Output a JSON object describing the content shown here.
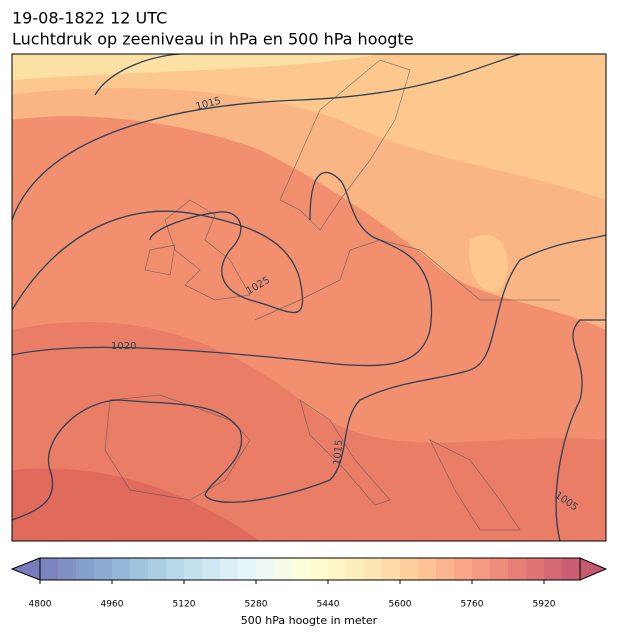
{
  "header": {
    "date": "19-08-1822 12 UTC",
    "title": "Luchtdruk op zeeniveau in hPa en 500 hPa hoogte"
  },
  "contour_labels": [
    "1015",
    "1025",
    "1020",
    "1015",
    "1005"
  ],
  "colorbar": {
    "label": "500 hPa hoogte in meter",
    "range": [
      4800,
      6000
    ],
    "step": 40,
    "ticks": [
      4800,
      4960,
      5120,
      5280,
      5440,
      5600,
      5760,
      5920
    ],
    "colormap": "RdYlBu_r",
    "extend": "both"
  }
}
